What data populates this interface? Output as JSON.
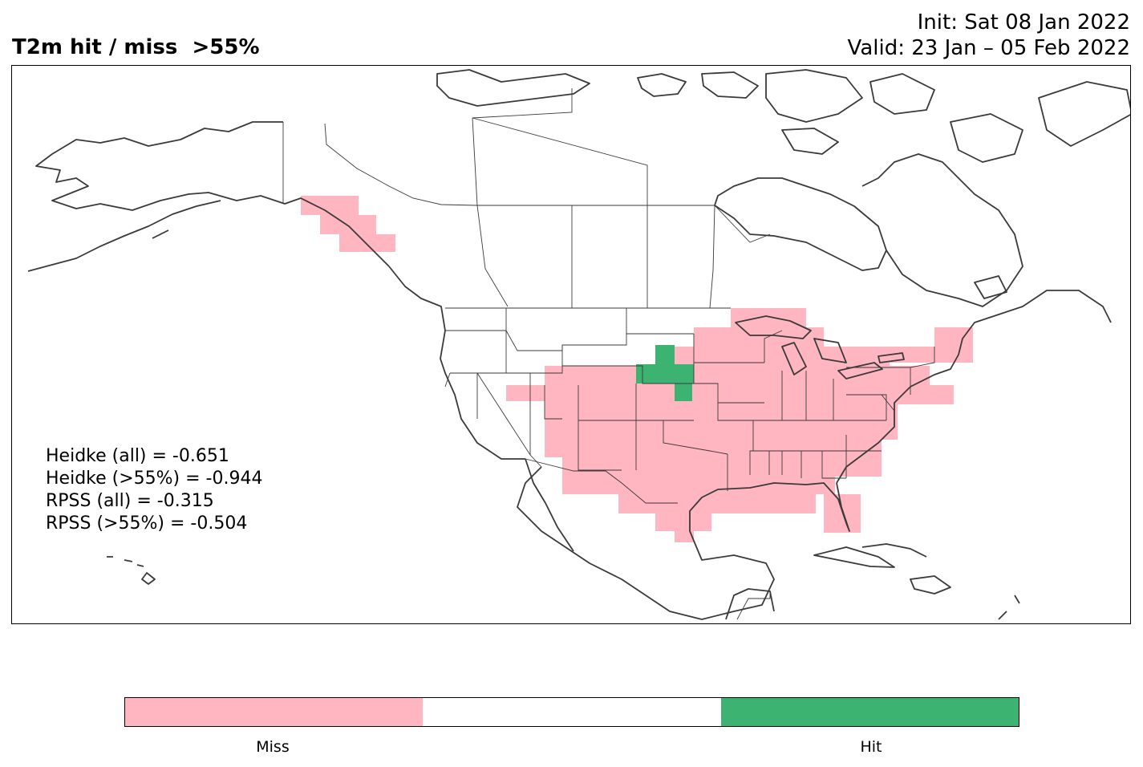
{
  "title": {
    "left": "T2m hit / miss  >55%",
    "init": "Init: Sat 08 Jan 2022",
    "valid": "Valid: 23 Jan – 05 Feb 2022"
  },
  "scores": {
    "heidke_all": "Heidke (all) = -0.651",
    "heidke_55": "Heidke (>55%) = -0.944",
    "rpss_all": "RPSS (all) = -0.315",
    "rpss_55": "RPSS (>55%) = -0.504"
  },
  "colors": {
    "miss": "#ffb6c1",
    "neutral": "#ffffff",
    "hit": "#3cb371",
    "coast": "#3a3a3a"
  },
  "colorbar": {
    "labels": [
      "Miss",
      "Hit"
    ]
  },
  "map_cells": {
    "miss_regions": [
      "Alaska panhandle",
      "Great Lakes / Upper Midwest",
      "Central Plains",
      "Southwest",
      "Texas",
      "Southeast",
      "Florida",
      "Northeast"
    ],
    "hit_regions": [
      "South Dakota / Nebraska border"
    ]
  }
}
